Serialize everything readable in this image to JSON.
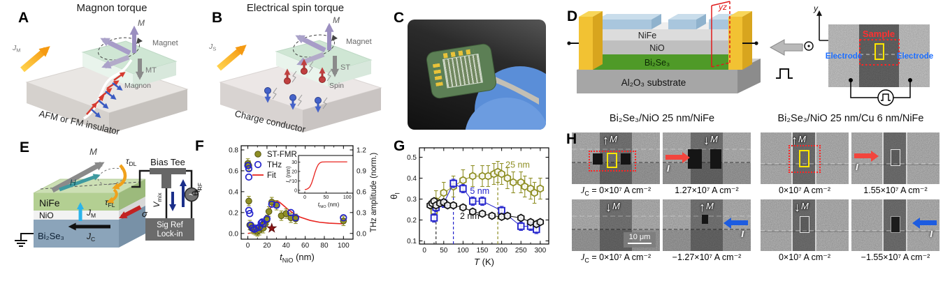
{
  "colors": {
    "olive": "#8f8f25",
    "thz_blue": "#2323cc",
    "fit_red": "#e8241f",
    "star_red": "#8c1515",
    "orange_arrow": "#f59a12",
    "magnet_purple": "#9b8fc0",
    "spin_red": "#c04040",
    "spin_blue": "#4663c9",
    "electrode_yellow": "#f2c233",
    "bise_green": "#4f9a28",
    "nife_block_blue": "#a9c6dd",
    "glove_blue": "#5a8ed8",
    "sample_red": "#ff3030",
    "electrode_label_blue": "#1e6fff",
    "current_red": "#f2453d",
    "current_blue": "#1d5ce0",
    "tau_orange": "#f0a11c",
    "jm_cyan": "#2ab4ea",
    "h_teal": "#3e9aa0",
    "navy": "#1b2f8a"
  },
  "panels": {
    "a": {
      "label": "A",
      "title": "Magnon torque",
      "current": {
        "main": "J",
        "sub": "M"
      },
      "m_label": "M",
      "magnet": "Magnet",
      "torque": "MT",
      "magnon": "Magnon",
      "bottom": "AFM or FM insulator"
    },
    "b": {
      "label": "B",
      "title": "Electrical spin torque",
      "current": {
        "main": "J",
        "sub": "S"
      },
      "m_label": "M",
      "magnet": "Magnet",
      "torque": "ST",
      "spin": "Spin",
      "bottom": "Charge conductor"
    },
    "c": {
      "label": "C"
    },
    "d": {
      "label": "D",
      "nife": "NiFe",
      "nio": "NiO",
      "bise": "Bi₂Se₃",
      "substrate": "Al₂O₃ substrate",
      "plane": "yz",
      "axis_x": "x",
      "axis_y": "y",
      "axis_z": "z",
      "sample": "Sample",
      "electrode_left": "Electrode",
      "electrode_right": "Electrode"
    },
    "e": {
      "label": "E",
      "nife": "NiFe",
      "nio": "NiO",
      "bise": "Bi₂Se₃",
      "m_label": "M",
      "h_label": "H",
      "tau_dl": {
        "main": "τ",
        "sub": "DL"
      },
      "tau_fl": {
        "main": "τ",
        "sub": "FL"
      },
      "jm": {
        "main": "J",
        "sub": "M"
      },
      "jc": {
        "main": "J",
        "sub": "C"
      },
      "sigma": "σ",
      "bias_tee": "Bias Tee",
      "vmix": {
        "main": "V",
        "sub": "mix"
      },
      "irf": {
        "main": "I",
        "sub": "RF"
      },
      "lockin1": "Sig Ref",
      "lockin2": "Lock-in"
    },
    "f": {
      "label": "F"
    },
    "g": {
      "label": "G"
    },
    "h": {
      "label": "H",
      "header_left": "Bi₂Se₃/NiO 25 nm/NiFe",
      "header_right": "Bi₂Se₃/NiO 25 nm/Cu 6 nm/NiFe",
      "tiles": [
        {
          "m_arrow": "↑",
          "m_label": "M",
          "caption_pre": "J",
          "caption_sub": "C",
          "caption": " = 0×10⁷ A cm⁻²"
        },
        {
          "m_arrow": "↓",
          "m_label": "M",
          "i_label": "I",
          "caption_pre": "",
          "caption_sub": "",
          "caption": "1.27×10⁷ A cm⁻²"
        },
        {
          "m_arrow": "↓",
          "m_label": "M",
          "scalebar": "10 μm",
          "caption_pre": "J",
          "caption_sub": "C",
          "caption": " = 0×10⁷ A cm⁻²"
        },
        {
          "m_arrow": "↑",
          "m_label": "M",
          "i_label": "I",
          "caption_pre": "",
          "caption_sub": "",
          "caption": "−1.27×10⁷ A cm⁻²"
        },
        {
          "m_arrow": "↑",
          "m_label": "M",
          "caption_pre": "",
          "caption_sub": "",
          "caption": "0×10⁷ A cm⁻²"
        },
        {
          "i_label": "I",
          "caption_pre": "",
          "caption_sub": "",
          "caption": "1.55×10⁷ A cm⁻²"
        },
        {
          "m_arrow": "↓",
          "m_label": "M",
          "caption_pre": "",
          "caption_sub": "",
          "caption": "0×10⁷ A cm⁻²"
        },
        {
          "i_label": "I",
          "caption_pre": "",
          "caption_sub": "",
          "caption": "−1.55×10⁷ A cm⁻²"
        }
      ]
    }
  },
  "chart_data": [
    {
      "id": "F",
      "type": "scatter",
      "xlabel": {
        "main": "t",
        "sub": "NiO",
        "rest": " (nm)"
      },
      "ylabel": {
        "main": "θ",
        "sub": "I",
        "rest": ""
      },
      "ylabel_right": "THz amplitude (norm.)",
      "xlim": [
        -7,
        110
      ],
      "xticks": [
        0,
        20,
        40,
        60,
        80,
        100
      ],
      "xminor": 10,
      "ylim": [
        -0.055,
        0.84
      ],
      "yticks": [
        0,
        0.2,
        0.4,
        0.6,
        0.8
      ],
      "yminor": 0.1,
      "ylim_right": [
        -0.0825,
        1.26
      ],
      "yticks_right": [
        0,
        0.3,
        0.6,
        0.9,
        1.2
      ],
      "legend": [
        {
          "label": "ST-FMR",
          "marker": "circle-filled",
          "color": "#8f8f25"
        },
        {
          "label": "THz",
          "marker": "circle-open",
          "color": "#2323cc"
        },
        {
          "label": "Fit",
          "marker": "line",
          "color": "#e8241f"
        }
      ],
      "series": [
        {
          "name": "ST-FMR",
          "marker": "circle-filled",
          "color": "#8f8f25",
          "edge": "#55550f",
          "err": 0.045,
          "points": [
            [
              0,
              0.67
            ],
            [
              1,
              0.65
            ],
            [
              1,
              0.31
            ],
            [
              2,
              0.08
            ],
            [
              4,
              0.05
            ],
            [
              6,
              0.04
            ],
            [
              8,
              0.03
            ],
            [
              10,
              0.02
            ],
            [
              12,
              0.03
            ],
            [
              14,
              0.05
            ],
            [
              15,
              0.08
            ],
            [
              16,
              0.05
            ],
            [
              18,
              0.09
            ],
            [
              20,
              0.13
            ],
            [
              22,
              0.21
            ],
            [
              25,
              0.3
            ],
            [
              30,
              0.27
            ],
            [
              35,
              0.17
            ],
            [
              40,
              0.19
            ],
            [
              45,
              0.15
            ],
            [
              50,
              0.14
            ],
            [
              100,
              0.12
            ]
          ]
        },
        {
          "name": "THz",
          "marker": "circle-open",
          "color": "#2323cc",
          "err": 0,
          "points": [
            [
              0,
              0.65
            ],
            [
              1,
              0.62
            ],
            [
              1,
              0.54
            ],
            [
              1,
              0.22
            ],
            [
              2,
              0.19
            ],
            [
              3,
              0.08
            ],
            [
              5,
              0.05
            ],
            [
              7,
              0.04
            ],
            [
              9,
              0.05
            ],
            [
              12,
              0.06
            ],
            [
              14,
              0.1
            ],
            [
              15,
              0.11
            ],
            [
              16,
              0.09
            ],
            [
              20,
              0.14
            ],
            [
              25,
              0.28
            ],
            [
              30,
              0.27
            ],
            [
              45,
              0.2
            ],
            [
              50,
              0.15
            ],
            [
              100,
              0.15
            ]
          ]
        },
        {
          "name": "outlier-star",
          "marker": "star",
          "color": "#8c1515",
          "err": 0,
          "points": [
            [
              25,
              0.05
            ]
          ]
        }
      ],
      "fit": {
        "name": "Fit",
        "color": "#e8241f",
        "points": [
          [
            0,
            0
          ],
          [
            4,
            0.005
          ],
          [
            8,
            0.015
          ],
          [
            12,
            0.03
          ],
          [
            15,
            0.06
          ],
          [
            18,
            0.11
          ],
          [
            21,
            0.18
          ],
          [
            24,
            0.25
          ],
          [
            27,
            0.29
          ],
          [
            30,
            0.31
          ],
          [
            33,
            0.3
          ],
          [
            37,
            0.27
          ],
          [
            42,
            0.23
          ],
          [
            48,
            0.19
          ],
          [
            55,
            0.155
          ],
          [
            65,
            0.125
          ],
          [
            75,
            0.107
          ],
          [
            85,
            0.098
          ],
          [
            100,
            0.092
          ]
        ]
      },
      "inset": {
        "xlabel": {
          "main": "t",
          "sub": "NiO",
          "rest": " (nm)"
        },
        "ylabel": {
          "main": "l",
          "sub": "s",
          "rest": " (nm)"
        },
        "xlim": [
          -5,
          107
        ],
        "xticks": [
          0,
          50,
          100
        ],
        "ylim": [
          -1.5,
          32.5
        ],
        "yticks": [
          0,
          10,
          20,
          30
        ],
        "color": "#e8241f",
        "points": [
          [
            0,
            0.8
          ],
          [
            4,
            1.1
          ],
          [
            8,
            2
          ],
          [
            12,
            3.8
          ],
          [
            16,
            7.5
          ],
          [
            20,
            13
          ],
          [
            24,
            19
          ],
          [
            28,
            24
          ],
          [
            32,
            27.5
          ],
          [
            36,
            29.2
          ],
          [
            40,
            30
          ],
          [
            50,
            30.2
          ],
          [
            70,
            30.2
          ],
          [
            100,
            30.2
          ]
        ]
      }
    },
    {
      "id": "G",
      "type": "scatter-line",
      "xlabel": {
        "main": "T",
        "sub": "",
        "rest": " (K)"
      },
      "ylabel": {
        "main": "θ",
        "sub": "I",
        "rest": ""
      },
      "xlim": [
        -13,
        322
      ],
      "xticks": [
        0,
        50,
        100,
        150,
        200,
        250,
        300
      ],
      "xminor": 25,
      "ylim": [
        0.085,
        0.545
      ],
      "yticks": [
        0.1,
        0.2,
        0.3,
        0.4,
        0.5
      ],
      "yminor": 0.05,
      "series": [
        {
          "name": "25 nm",
          "marker": "hexagon-open",
          "color": "#8f8f25",
          "err": 0.05,
          "label_at": [
            210,
            0.45
          ],
          "points": [
            [
              25,
              0.24
            ],
            [
              30,
              0.29
            ],
            [
              50,
              0.33
            ],
            [
              75,
              0.36
            ],
            [
              100,
              0.39
            ],
            [
              125,
              0.41
            ],
            [
              150,
              0.41
            ],
            [
              165,
              0.41
            ],
            [
              180,
              0.42
            ],
            [
              190,
              0.43
            ],
            [
              200,
              0.42
            ],
            [
              215,
              0.4
            ],
            [
              230,
              0.38
            ],
            [
              250,
              0.38
            ],
            [
              260,
              0.36
            ],
            [
              275,
              0.35
            ],
            [
              285,
              0.33
            ],
            [
              300,
              0.35
            ]
          ]
        },
        {
          "name": "5 nm",
          "marker": "square-open",
          "color": "#2323cc",
          "err": 0.02,
          "label_at": [
            118,
            0.325
          ],
          "points": [
            [
              25,
              0.21
            ],
            [
              30,
              0.26
            ],
            [
              50,
              0.28
            ],
            [
              75,
              0.375
            ],
            [
              100,
              0.35
            ],
            [
              125,
              0.29
            ],
            [
              150,
              0.29
            ],
            [
              200,
              0.245
            ],
            [
              250,
              0.17
            ],
            [
              275,
              0.17
            ],
            [
              290,
              0.155
            ]
          ]
        },
        {
          "name": "2 nm",
          "marker": "hexagon-open",
          "color": "#141414",
          "err": 0.012,
          "label_at": [
            92,
            0.205
          ],
          "points": [
            [
              15,
              0.27
            ],
            [
              20,
              0.28
            ],
            [
              25,
              0.29
            ],
            [
              30,
              0.27
            ],
            [
              40,
              0.28
            ],
            [
              50,
              0.285
            ],
            [
              60,
              0.27
            ],
            [
              75,
              0.27
            ],
            [
              100,
              0.26
            ],
            [
              125,
              0.24
            ],
            [
              150,
              0.23
            ],
            [
              175,
              0.22
            ],
            [
              200,
              0.215
            ],
            [
              215,
              0.22
            ],
            [
              250,
              0.21
            ],
            [
              275,
              0.19
            ],
            [
              290,
              0.18
            ],
            [
              300,
              0.19
            ]
          ]
        }
      ],
      "vlines": [
        {
          "x": 30,
          "to": 0.28,
          "color": "#333333"
        },
        {
          "x": 75,
          "to": 0.37,
          "color": "#2323cc"
        },
        {
          "x": 190,
          "to": 0.43,
          "color": "#8f8f25"
        }
      ]
    }
  ]
}
